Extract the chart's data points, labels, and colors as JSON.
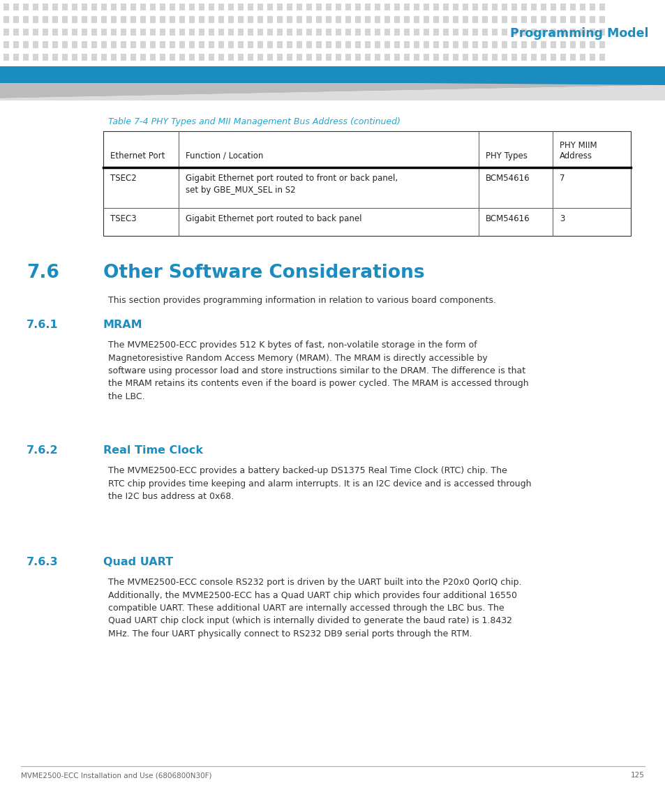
{
  "page_bg": "#ffffff",
  "header_dot_color": "#d4d4d4",
  "header_bar_color": "#1b8cc0",
  "header_title": "Programming Model",
  "header_title_color": "#1b8cc0",
  "table_caption": "Table 7-4 PHY Types and MII Management Bus Address (continued)",
  "table_caption_color": "#1aaad4",
  "table_headers": [
    "Ethernet Port",
    "Function / Location",
    "PHY Types",
    "PHY MIIM\nAddress"
  ],
  "table_rows": [
    [
      "TSEC2",
      "Gigabit Ethernet port routed to front or back panel,\nset by GBE_MUX_SEL in S2",
      "BCM54616",
      "7"
    ],
    [
      "TSEC3",
      "Gigabit Ethernet port routed to back panel",
      "BCM54616",
      "3"
    ]
  ],
  "section_76_num": "7.6",
  "section_76_title": "Other Software Considerations",
  "section_76_color": "#1b8cc0",
  "section_76_body": "This section provides programming information in relation to various board components.",
  "section_761_num": "7.6.1",
  "section_761_title": "MRAM",
  "section_761_color": "#1b8cc0",
  "section_761_body": "The MVME2500-ECC provides 512 K bytes of fast, non-volatile storage in the form of\nMagnetoresistive Random Access Memory (MRAM). The MRAM is directly accessible by\nsoftware using processor load and store instructions similar to the DRAM. The difference is that\nthe MRAM retains its contents even if the board is power cycled. The MRAM is accessed through\nthe LBC.",
  "section_762_num": "7.6.2",
  "section_762_title": "Real Time Clock",
  "section_762_color": "#1b8cc0",
  "section_762_body": "The MVME2500-ECC provides a battery backed-up DS1375 Real Time Clock (RTC) chip. The\nRTC chip provides time keeping and alarm interrupts. It is an I2C device and is accessed through\nthe I2C bus address at 0x68.",
  "section_763_num": "7.6.3",
  "section_763_title": "Quad UART",
  "section_763_color": "#1b8cc0",
  "section_763_body": "The MVME2500-ECC console RS232 port is driven by the UART built into the P20x0 QorIQ chip.\nAdditionally, the MVME2500-ECC has a Quad UART chip which provides four additional 16550\ncompatible UART. These additional UART are internally accessed through the LBC bus. The\nQuad UART chip clock input (which is internally divided to generate the baud rate) is 1.8432\nMHz. The four UART physically connect to RS232 DB9 serial ports through the RTM.",
  "footer_text": "MVME2500-ECC Installation and Use (6806800N30F)",
  "footer_page": "125",
  "footer_color": "#666666",
  "body_text_color": "#333333"
}
